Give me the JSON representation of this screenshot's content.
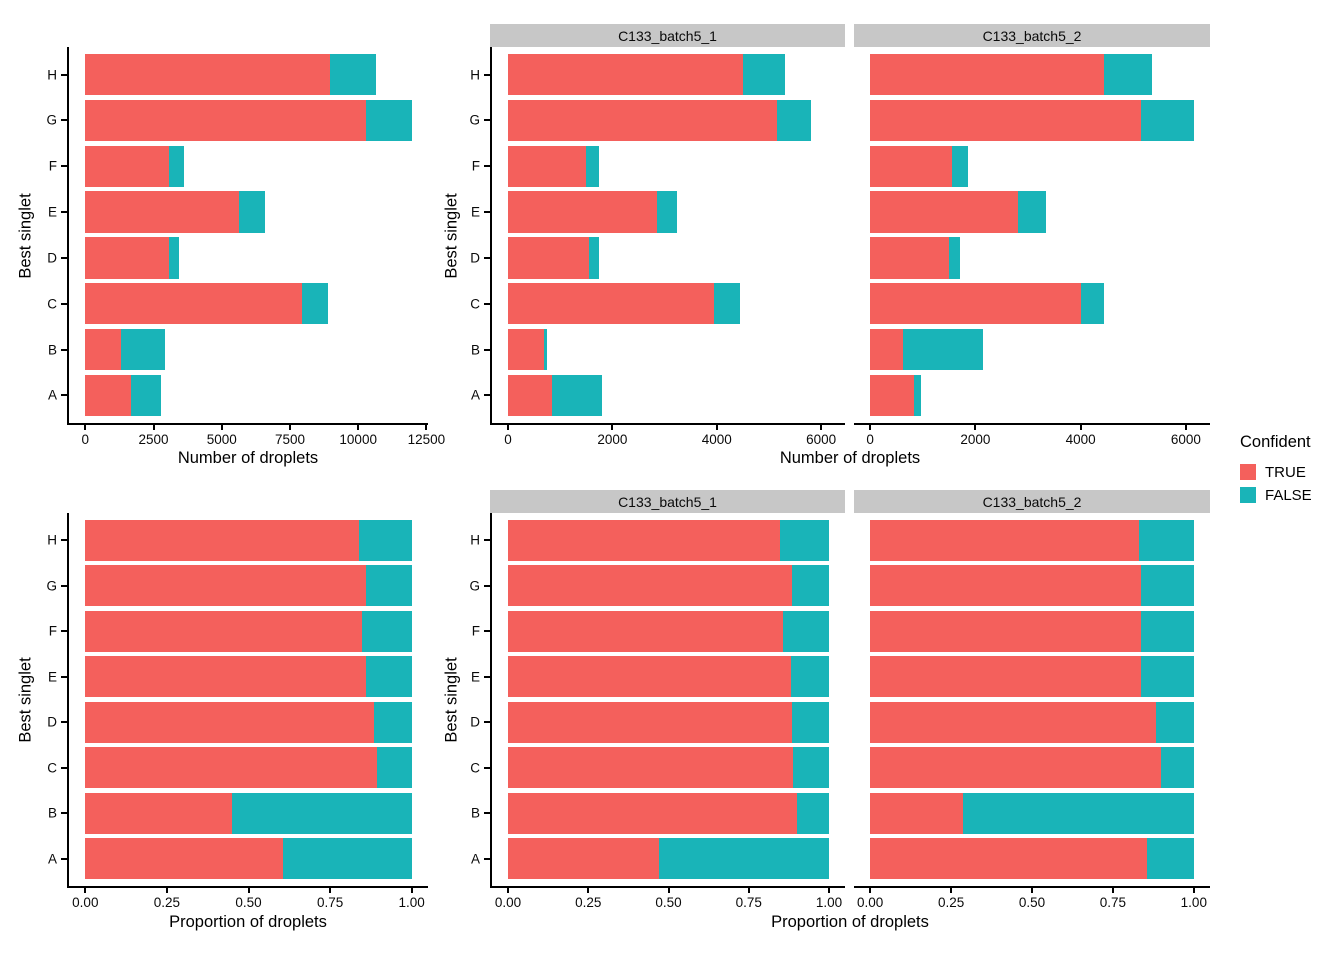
{
  "axis_titles": {
    "counts": "Number of droplets",
    "props": "Proportion of droplets",
    "y": "Best singlet"
  },
  "legend": {
    "title": "Confident",
    "items": [
      {
        "label": "TRUE",
        "color": "#F4605C"
      },
      {
        "label": "FALSE",
        "color": "#19B4B8"
      }
    ]
  },
  "facets": [
    "C133_batch5_1",
    "C133_batch5_2"
  ],
  "colors": {
    "strip_bg": "#C7C7C7",
    "axis": "#000000"
  },
  "chart_data": [
    {
      "id": "counts_all",
      "type": "bar",
      "orientation": "horizontal",
      "stacked": true,
      "facet": null,
      "xlabel": "Number of droplets",
      "ylabel": "Best singlet",
      "categories": [
        "H",
        "G",
        "F",
        "E",
        "D",
        "C",
        "B",
        "A"
      ],
      "series": [
        {
          "name": "TRUE",
          "values": [
            8950,
            10300,
            3050,
            5650,
            3050,
            7950,
            1300,
            1680
          ]
        },
        {
          "name": "FALSE",
          "values": [
            1700,
            1660,
            550,
            930,
            400,
            950,
            1605,
            1090
          ]
        }
      ],
      "xlim": [
        0,
        12500
      ],
      "domain": [
        -598,
        12558
      ],
      "grid": false,
      "show_ylabels": true,
      "xticks": [
        {
          "v": 0,
          "label": "0"
        },
        {
          "v": 2500,
          "label": "2500"
        },
        {
          "v": 5000,
          "label": "5000"
        },
        {
          "v": 7500,
          "label": "7500"
        },
        {
          "v": 10000,
          "label": "10000"
        },
        {
          "v": 12500,
          "label": "12500"
        }
      ]
    },
    {
      "id": "counts_b1",
      "type": "bar",
      "orientation": "horizontal",
      "stacked": true,
      "facet": "C133_batch5_1",
      "xlabel": "Number of droplets",
      "ylabel": "Best singlet",
      "categories": [
        "H",
        "G",
        "F",
        "E",
        "D",
        "C",
        "B",
        "A"
      ],
      "series": [
        {
          "name": "TRUE",
          "values": [
            4500,
            5150,
            1500,
            2850,
            1550,
            3950,
            680,
            845
          ]
        },
        {
          "name": "FALSE",
          "values": [
            800,
            660,
            250,
            380,
            200,
            500,
            75,
            950
          ]
        }
      ],
      "xlim": [
        0,
        6000
      ],
      "domain": [
        -307.5,
        6457.5
      ],
      "grid": false,
      "show_ylabels": true,
      "xticks": [
        {
          "v": 0,
          "label": "0"
        },
        {
          "v": 2000,
          "label": "2000"
        },
        {
          "v": 4000,
          "label": "4000"
        },
        {
          "v": 6000,
          "label": "6000"
        }
      ]
    },
    {
      "id": "counts_b2",
      "type": "bar",
      "orientation": "horizontal",
      "stacked": true,
      "facet": "C133_batch5_2",
      "xlabel": "Number of droplets",
      "ylabel": "Best singlet",
      "categories": [
        "H",
        "G",
        "F",
        "E",
        "D",
        "C",
        "B",
        "A"
      ],
      "series": [
        {
          "name": "TRUE",
          "values": [
            4450,
            5150,
            1550,
            2800,
            1500,
            4000,
            620,
            835
          ]
        },
        {
          "name": "FALSE",
          "values": [
            900,
            1000,
            300,
            550,
            200,
            450,
            1530,
            140
          ]
        }
      ],
      "xlim": [
        0,
        6000
      ],
      "domain": [
        -307.5,
        6457.5
      ],
      "grid": false,
      "show_ylabels": false,
      "xticks": [
        {
          "v": 0,
          "label": "0"
        },
        {
          "v": 2000,
          "label": "2000"
        },
        {
          "v": 4000,
          "label": "4000"
        },
        {
          "v": 6000,
          "label": "6000"
        }
      ]
    },
    {
      "id": "props_all",
      "type": "bar",
      "orientation": "horizontal",
      "stacked": true,
      "facet": null,
      "xlabel": "Proportion of droplets",
      "ylabel": "Best singlet",
      "categories": [
        "H",
        "G",
        "F",
        "E",
        "D",
        "C",
        "B",
        "A"
      ],
      "series": [
        {
          "name": "TRUE",
          "values": [
            0.84,
            0.861,
            0.847,
            0.859,
            0.884,
            0.893,
            0.448,
            0.606
          ]
        },
        {
          "name": "FALSE",
          "values": [
            0.16,
            0.139,
            0.153,
            0.141,
            0.116,
            0.107,
            0.552,
            0.394
          ]
        }
      ],
      "xlim": [
        0,
        1
      ],
      "domain": [
        -0.05,
        1.05
      ],
      "grid": false,
      "show_ylabels": true,
      "xticks": [
        {
          "v": 0,
          "label": "0.00"
        },
        {
          "v": 0.25,
          "label": "0.25"
        },
        {
          "v": 0.5,
          "label": "0.50"
        },
        {
          "v": 0.75,
          "label": "0.75"
        },
        {
          "v": 1,
          "label": "1.00"
        }
      ]
    },
    {
      "id": "props_b1",
      "type": "bar",
      "orientation": "horizontal",
      "stacked": true,
      "facet": "C133_batch5_1",
      "xlabel": "Proportion of droplets",
      "ylabel": "Best singlet",
      "categories": [
        "H",
        "G",
        "F",
        "E",
        "D",
        "C",
        "B",
        "A"
      ],
      "series": [
        {
          "name": "TRUE",
          "values": [
            0.849,
            0.886,
            0.857,
            0.882,
            0.886,
            0.888,
            0.901,
            0.471
          ]
        },
        {
          "name": "FALSE",
          "values": [
            0.151,
            0.114,
            0.143,
            0.118,
            0.114,
            0.112,
            0.099,
            0.529
          ]
        }
      ],
      "xlim": [
        0,
        1
      ],
      "domain": [
        -0.05,
        1.05
      ],
      "grid": false,
      "show_ylabels": true,
      "xticks": [
        {
          "v": 0,
          "label": "0.00"
        },
        {
          "v": 0.25,
          "label": "0.25"
        },
        {
          "v": 0.5,
          "label": "0.50"
        },
        {
          "v": 0.75,
          "label": "0.75"
        },
        {
          "v": 1,
          "label": "1.00"
        }
      ]
    },
    {
      "id": "props_b2",
      "type": "bar",
      "orientation": "horizontal",
      "stacked": true,
      "facet": "C133_batch5_2",
      "xlabel": "Proportion of droplets",
      "ylabel": "Best singlet",
      "categories": [
        "H",
        "G",
        "F",
        "E",
        "D",
        "C",
        "B",
        "A"
      ],
      "series": [
        {
          "name": "TRUE",
          "values": [
            0.832,
            0.837,
            0.838,
            0.836,
            0.882,
            0.899,
            0.288,
            0.856
          ]
        },
        {
          "name": "FALSE",
          "values": [
            0.168,
            0.163,
            0.162,
            0.164,
            0.118,
            0.101,
            0.712,
            0.144
          ]
        }
      ],
      "xlim": [
        0,
        1
      ],
      "domain": [
        -0.05,
        1.05
      ],
      "grid": false,
      "show_ylabels": false,
      "xticks": [
        {
          "v": 0,
          "label": "0.00"
        },
        {
          "v": 0.25,
          "label": "0.25"
        },
        {
          "v": 0.5,
          "label": "0.50"
        },
        {
          "v": 0.75,
          "label": "0.75"
        },
        {
          "v": 1,
          "label": "1.00"
        }
      ]
    }
  ]
}
